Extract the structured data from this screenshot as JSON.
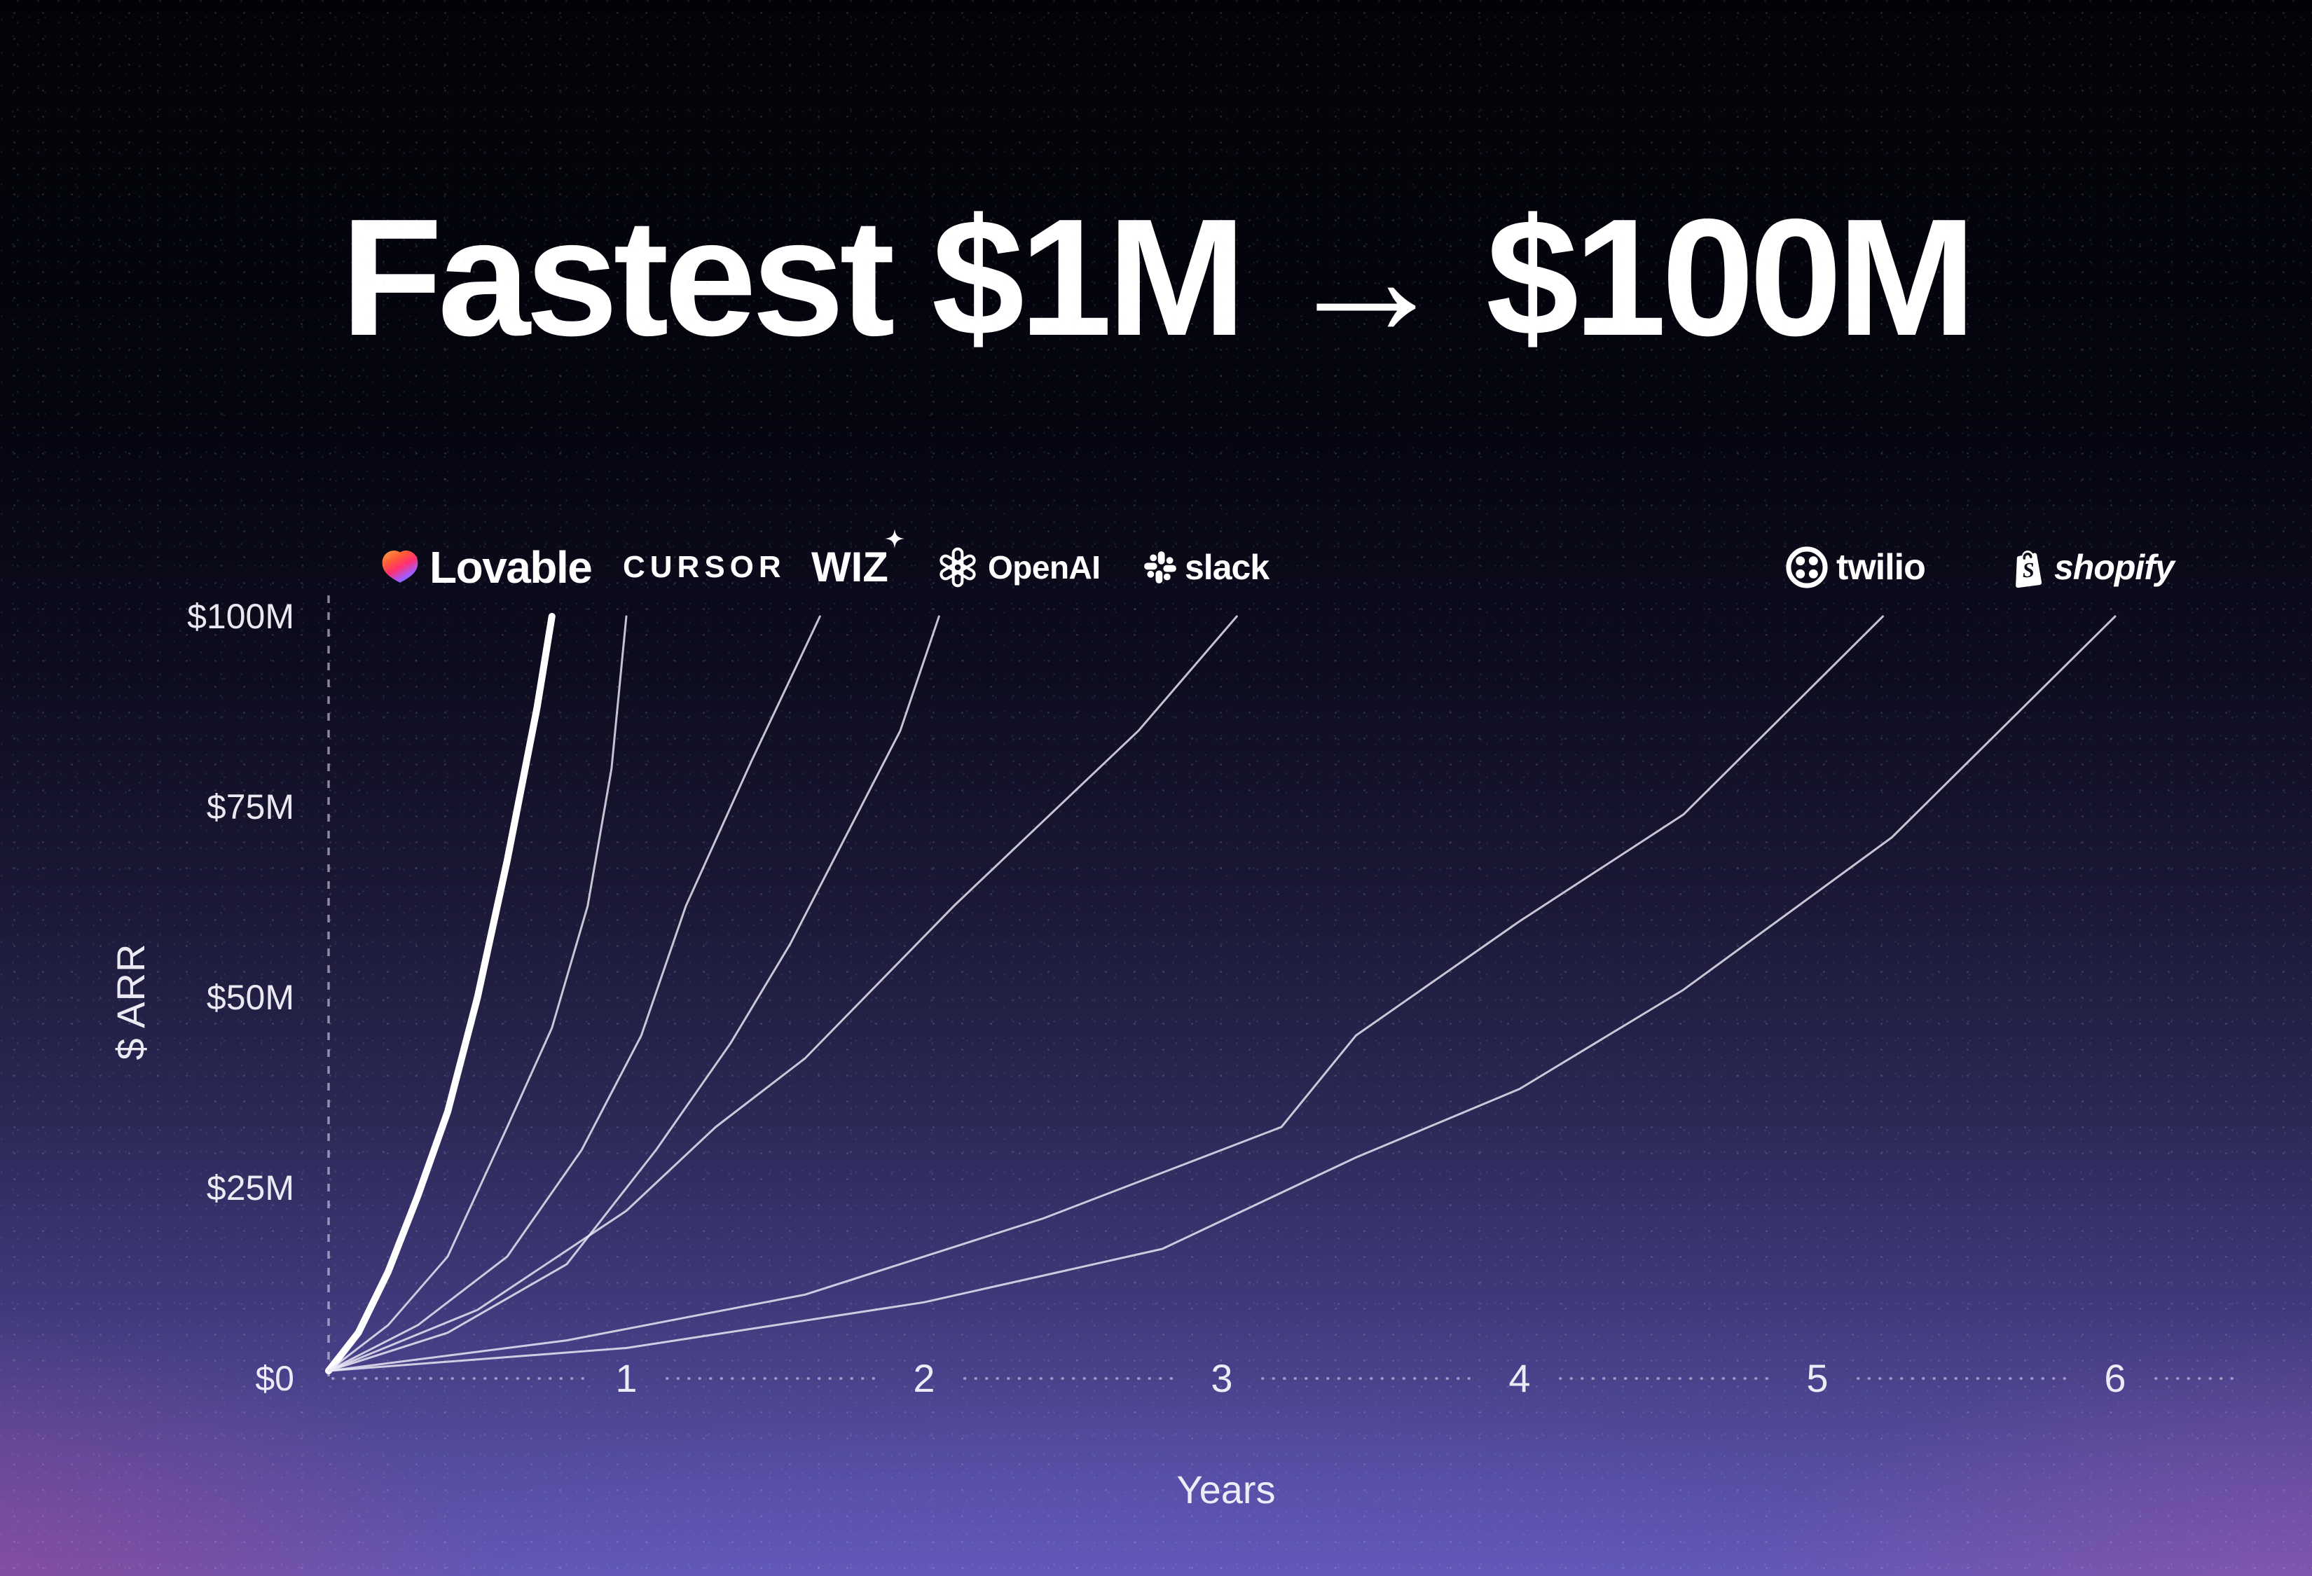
{
  "title": {
    "text": "Fastest $1M → $100M"
  },
  "axes": {
    "y_title": "$ ARR",
    "x_title": "Years",
    "y_ticks": [
      "$100M",
      "$75M",
      "$50M",
      "$25M",
      "$0"
    ],
    "x_ticks": [
      "1",
      "2",
      "3",
      "4",
      "5",
      "6"
    ]
  },
  "logos": [
    {
      "name": "lovable",
      "label": "Lovable"
    },
    {
      "name": "cursor",
      "label": "CURSOR"
    },
    {
      "name": "wiz",
      "label": "WIZ"
    },
    {
      "name": "openai",
      "label": "OpenAI"
    },
    {
      "name": "slack",
      "label": "slack"
    },
    {
      "name": "twilio",
      "label": "twilio"
    },
    {
      "name": "shopify",
      "label": "shopify"
    }
  ],
  "colors": {
    "line": "#eeecf8",
    "emphasis_line": "#ffffff",
    "lovable_gradient": [
      "#ff9d45",
      "#ff5a36",
      "#ff2f72",
      "#a45bff",
      "#517bff"
    ],
    "background_top": "#030307",
    "background_bottom": "#6157b2",
    "glow_left": "#b73e8a",
    "glow_right": "#c452a8"
  },
  "chart_data": {
    "type": "line",
    "title": "Fastest $1M → $100M",
    "xlabel": "Years",
    "ylabel": "$ ARR",
    "xlim": [
      0,
      6.4
    ],
    "ylim": [
      0,
      100
    ],
    "x_ticks": [
      1,
      2,
      3,
      4,
      5,
      6
    ],
    "y_tick_values": [
      100,
      75,
      50,
      25,
      0
    ],
    "grid": false,
    "legend_position": "logos-above-line-endpoints",
    "unit": "$M ARR",
    "series": [
      {
        "name": "Lovable",
        "emphasis": true,
        "years_to_100m": 0.75,
        "x": [
          0,
          0.1,
          0.2,
          0.3,
          0.4,
          0.5,
          0.6,
          0.7,
          0.75
        ],
        "y": [
          1,
          6,
          14,
          24,
          35,
          50,
          68,
          88,
          100
        ]
      },
      {
        "name": "Cursor",
        "emphasis": false,
        "years_to_100m": 1.0,
        "x": [
          0,
          0.2,
          0.4,
          0.6,
          0.75,
          0.87,
          0.95,
          1.0
        ],
        "y": [
          1,
          7,
          16,
          33,
          46,
          62,
          80,
          100
        ]
      },
      {
        "name": "Wiz",
        "emphasis": false,
        "years_to_100m": 1.65,
        "x": [
          0,
          0.3,
          0.6,
          0.85,
          1.05,
          1.2,
          1.42,
          1.65
        ],
        "y": [
          1,
          7,
          16,
          30,
          45,
          62,
          81,
          100
        ]
      },
      {
        "name": "OpenAI",
        "emphasis": false,
        "years_to_100m": 2.05,
        "x": [
          0,
          0.4,
          0.8,
          1.1,
          1.35,
          1.55,
          1.92,
          2.05
        ],
        "y": [
          1,
          6,
          15,
          30,
          44,
          57,
          85,
          100
        ]
      },
      {
        "name": "Slack",
        "emphasis": false,
        "years_to_100m": 3.05,
        "x": [
          0,
          0.5,
          1.0,
          1.3,
          1.6,
          2.1,
          2.72,
          3.05
        ],
        "y": [
          1,
          9,
          22,
          33,
          42,
          62,
          85,
          100
        ]
      },
      {
        "name": "Twilio",
        "emphasis": false,
        "years_to_100m": 5.22,
        "x": [
          0,
          0.8,
          1.6,
          2.4,
          3.2,
          3.45,
          4.0,
          4.55,
          5.22
        ],
        "y": [
          1,
          5,
          11,
          21,
          33,
          45,
          60,
          74,
          100
        ]
      },
      {
        "name": "Shopify",
        "emphasis": false,
        "years_to_100m": 6.0,
        "x": [
          0,
          1.0,
          2.0,
          2.8,
          3.45,
          4.0,
          4.55,
          5.25,
          6.0
        ],
        "y": [
          1,
          4,
          10,
          17,
          29,
          38,
          51,
          71,
          100
        ]
      }
    ]
  }
}
